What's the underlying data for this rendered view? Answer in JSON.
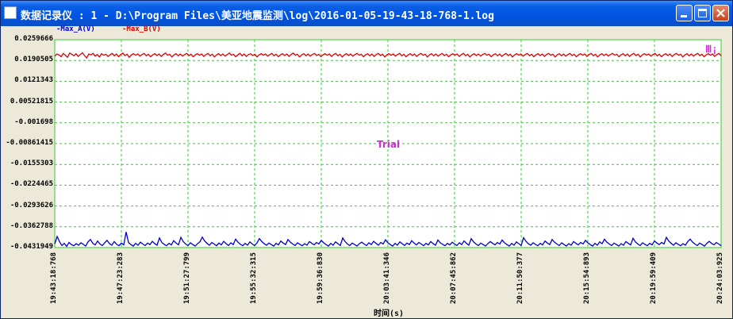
{
  "window": {
    "title": "数据记录仪 : 1 - D:\\Program Files\\美亚地震监测\\log\\2016-01-05-19-43-18-768-1.log",
    "buttons": [
      "minimize",
      "maximize",
      "close"
    ]
  },
  "legend": [
    {
      "label": "-Max_A(V)",
      "color": "#0000CC"
    },
    {
      "label": "-Max_B(V)",
      "color": "#DD0000"
    }
  ],
  "watermark": "Trial",
  "marker_text": "Ⅲ¡",
  "chart_data": {
    "type": "line",
    "xlabel": "时间(s)",
    "ylabel": "",
    "title": "",
    "grid": true,
    "grid_color": "#33CC33",
    "ylim": [
      -0.0431949,
      0.0259666
    ],
    "yticks": [
      "0.0259666",
      "0.0190505",
      "0.0121343",
      "0.00521815",
      "-0.001698",
      "-0.00861415",
      "-0.0155303",
      "-0.0224465",
      "-0.0293626",
      "-0.0362788",
      "-0.0431949"
    ],
    "yvalues": [
      0.0259666,
      0.0190505,
      0.0121343,
      0.00521815,
      -0.001698,
      -0.00861415,
      -0.0155303,
      -0.0224465,
      -0.0293626,
      -0.0362788,
      -0.0431949
    ],
    "xticks": [
      "19:43:18:768",
      "19:47:23:283",
      "19:51:27:799",
      "19:55:32:315",
      "19:59:36:830",
      "20:03:41:346",
      "20:07:45:862",
      "20:11:50:377",
      "20:15:54:893",
      "20:19:59:409",
      "20:24:03:925"
    ],
    "series": [
      {
        "name": "-Max_B(V)",
        "color": "#DD0000",
        "values": [
          0.0205,
          0.0212,
          0.0209,
          0.0203,
          0.0214,
          0.0208,
          0.0201,
          0.0215,
          0.0211,
          0.0206,
          0.0213,
          0.0204,
          0.021,
          0.0216,
          0.0207,
          0.0199,
          0.0212,
          0.0209,
          0.0214,
          0.0205,
          0.021,
          0.0202,
          0.0213,
          0.0208,
          0.0211,
          0.0204,
          0.0209,
          0.0214,
          0.0206,
          0.0212,
          0.0203,
          0.021,
          0.0215,
          0.0207,
          0.0211,
          0.0201,
          0.0209,
          0.0213,
          0.0208,
          0.0212,
          0.0205,
          0.021,
          0.0214,
          0.0206,
          0.0211,
          0.0203,
          0.0209,
          0.0213,
          0.0207,
          0.0212,
          0.0204,
          0.021,
          0.0215,
          0.0208,
          0.0211,
          0.0202,
          0.0209,
          0.0213,
          0.0206,
          0.0212,
          0.0205,
          0.021,
          0.0214,
          0.0207,
          0.0211,
          0.0203,
          0.0209,
          0.0213,
          0.0208,
          0.0212,
          0.0204,
          0.021,
          0.0214,
          0.0206,
          0.0211,
          0.0202,
          0.0209,
          0.0213,
          0.0207,
          0.0212,
          0.0205,
          0.021,
          0.0215,
          0.0208,
          0.0211,
          0.0203,
          0.0209,
          0.0214,
          0.0206,
          0.0212,
          0.0204,
          0.021,
          0.0213,
          0.0207,
          0.0211,
          0.0202,
          0.0209,
          0.0213,
          0.0208,
          0.0212,
          0.0205,
          0.021,
          0.0214,
          0.0206,
          0.0211,
          0.0203,
          0.0209,
          0.0213,
          0.0207,
          0.0212,
          0.0204,
          0.021,
          0.0215,
          0.0208,
          0.0211,
          0.0202,
          0.0209,
          0.0213,
          0.0206,
          0.0212,
          0.0205,
          0.021,
          0.0214,
          0.0207,
          0.0211,
          0.0203,
          0.0209,
          0.0213,
          0.0208,
          0.0212,
          0.0204,
          0.021,
          0.0214,
          0.0206,
          0.0211,
          0.0202,
          0.0209,
          0.0213,
          0.0207,
          0.0212,
          0.0205,
          0.021,
          0.0214,
          0.0208,
          0.0211,
          0.0203,
          0.0209,
          0.0213,
          0.0206,
          0.0212,
          0.0204,
          0.021,
          0.0214,
          0.0207,
          0.0211,
          0.0202,
          0.0209,
          0.0213,
          0.0208,
          0.0212,
          0.0205,
          0.021,
          0.0214,
          0.0206,
          0.0211,
          0.0203,
          0.0209,
          0.0213,
          0.0207,
          0.0212,
          0.0204,
          0.021,
          0.0214,
          0.0208,
          0.0211,
          0.0202,
          0.0209,
          0.0213,
          0.0206,
          0.0212,
          0.0205,
          0.021,
          0.0214,
          0.0207,
          0.0211,
          0.0203,
          0.0209,
          0.0213,
          0.0208,
          0.0212,
          0.0204,
          0.021,
          0.0214,
          0.0206,
          0.0211,
          0.0202,
          0.0209,
          0.0213,
          0.0207,
          0.0212,
          0.0205,
          0.021,
          0.0214,
          0.0208,
          0.0211,
          0.0203,
          0.0209,
          0.0213,
          0.0206,
          0.0212,
          0.0204,
          0.021,
          0.0214,
          0.0207,
          0.0211,
          0.0202,
          0.0209,
          0.0213,
          0.0208,
          0.0212,
          0.0205,
          0.021,
          0.0214,
          0.0206,
          0.0211,
          0.0203,
          0.0209,
          0.0213,
          0.0207,
          0.0212,
          0.0204,
          0.021,
          0.0214,
          0.0208,
          0.0211,
          0.0202,
          0.0209,
          0.0213,
          0.0206,
          0.0212,
          0.0205,
          0.021,
          0.0214,
          0.0207,
          0.0211,
          0.0203,
          0.0209,
          0.0213,
          0.0208,
          0.0212,
          0.0204,
          0.021,
          0.0214,
          0.0206,
          0.0211,
          0.0202,
          0.0209,
          0.0213,
          0.0207,
          0.0212,
          0.0205,
          0.021,
          0.0214,
          0.0208,
          0.0211,
          0.0203,
          0.0209,
          0.0213,
          0.0206,
          0.0212,
          0.0204,
          0.021,
          0.0214,
          0.0207,
          0.0211,
          0.0202,
          0.0209,
          0.0213,
          0.0208,
          0.0212,
          0.0205,
          0.021,
          0.0214,
          0.0206,
          0.0211,
          0.0203,
          0.0209,
          0.0213,
          0.0207,
          0.0212,
          0.0204,
          0.021,
          0.0214,
          0.0208,
          0.0211,
          0.0202,
          0.0209,
          0.0213,
          0.0206,
          0.0212,
          0.0205,
          0.021,
          0.0214,
          0.0207,
          0.0211,
          0.0203,
          0.0209,
          0.0213,
          0.0208,
          0.0212,
          0.0204,
          0.021,
          0.0214,
          0.0206
        ]
      },
      {
        "name": "-Max_A(V)",
        "color": "#0000CC",
        "values": [
          -0.042,
          -0.0395,
          -0.0412,
          -0.0425,
          -0.0418,
          -0.0428,
          -0.0415,
          -0.0422,
          -0.0426,
          -0.0419,
          -0.0424,
          -0.0416,
          -0.0421,
          -0.0427,
          -0.0413,
          -0.0405,
          -0.0418,
          -0.0423,
          -0.041,
          -0.042,
          -0.0425,
          -0.0416,
          -0.0408,
          -0.0419,
          -0.0424,
          -0.0412,
          -0.0421,
          -0.0426,
          -0.0417,
          -0.0423,
          -0.038,
          -0.0415,
          -0.0422,
          -0.0427,
          -0.0418,
          -0.0424,
          -0.0414,
          -0.042,
          -0.0425,
          -0.0417,
          -0.0422,
          -0.0411,
          -0.0419,
          -0.0424,
          -0.04,
          -0.0415,
          -0.0421,
          -0.0426,
          -0.0418,
          -0.0423,
          -0.0409,
          -0.0417,
          -0.0423,
          -0.0398,
          -0.0412,
          -0.042,
          -0.0425,
          -0.0416,
          -0.0422,
          -0.0427,
          -0.0419,
          -0.0413,
          -0.0397,
          -0.041,
          -0.0418,
          -0.0424,
          -0.0415,
          -0.042,
          -0.0426,
          -0.0417,
          -0.0423,
          -0.0411,
          -0.0419,
          -0.0425,
          -0.0416,
          -0.0422,
          -0.0404,
          -0.0414,
          -0.0421,
          -0.0426,
          -0.0418,
          -0.0424,
          -0.0413,
          -0.042,
          -0.0425,
          -0.0416,
          -0.0402,
          -0.0412,
          -0.0419,
          -0.0424,
          -0.0417,
          -0.0422,
          -0.0427,
          -0.0418,
          -0.0423,
          -0.041,
          -0.0417,
          -0.0422,
          -0.0405,
          -0.0414,
          -0.042,
          -0.0425,
          -0.0416,
          -0.0421,
          -0.0426,
          -0.0419,
          -0.0424,
          -0.0412,
          -0.0418,
          -0.0423,
          -0.0415,
          -0.042,
          -0.0408,
          -0.0416,
          -0.0422,
          -0.0427,
          -0.0418,
          -0.0424,
          -0.0413,
          -0.0419,
          -0.0425,
          -0.04,
          -0.0412,
          -0.042,
          -0.0425,
          -0.0417,
          -0.0422,
          -0.0427,
          -0.0419,
          -0.0414,
          -0.042,
          -0.0425,
          -0.0416,
          -0.0422,
          -0.0411,
          -0.0418,
          -0.0424,
          -0.0415,
          -0.042,
          -0.0406,
          -0.0416,
          -0.0422,
          -0.0427,
          -0.0418,
          -0.0424,
          -0.0413,
          -0.0419,
          -0.0425,
          -0.0417,
          -0.0422,
          -0.0409,
          -0.0417,
          -0.0423,
          -0.0415,
          -0.042,
          -0.0426,
          -0.0418,
          -0.0423,
          -0.0412,
          -0.0419,
          -0.0424,
          -0.0407,
          -0.0416,
          -0.0421,
          -0.0426,
          -0.0418,
          -0.0423,
          -0.0414,
          -0.042,
          -0.0425,
          -0.0416,
          -0.0422,
          -0.041,
          -0.0418,
          -0.0424,
          -0.0402,
          -0.0413,
          -0.042,
          -0.0425,
          -0.0417,
          -0.0422,
          -0.0427,
          -0.0419,
          -0.0412,
          -0.0418,
          -0.0423,
          -0.0415,
          -0.042,
          -0.0407,
          -0.0416,
          -0.0422,
          -0.0427,
          -0.0418,
          -0.0424,
          -0.0413,
          -0.0419,
          -0.0425,
          -0.0399,
          -0.0411,
          -0.0419,
          -0.0424,
          -0.0416,
          -0.0421,
          -0.0426,
          -0.0418,
          -0.0423,
          -0.041,
          -0.0417,
          -0.0422,
          -0.0405,
          -0.0414,
          -0.042,
          -0.0425,
          -0.0416,
          -0.0422,
          -0.0427,
          -0.0419,
          -0.0424,
          -0.0412,
          -0.0418,
          -0.0423,
          -0.0415,
          -0.042,
          -0.0408,
          -0.0416,
          -0.0422,
          -0.0427,
          -0.0418,
          -0.0424,
          -0.0413,
          -0.0419,
          -0.0404,
          -0.0414,
          -0.042,
          -0.0425,
          -0.0417,
          -0.0422,
          -0.0427,
          -0.0419,
          -0.0424,
          -0.0412,
          -0.0418,
          -0.0423,
          -0.0401,
          -0.0413,
          -0.042,
          -0.0425,
          -0.0416,
          -0.0421,
          -0.0426,
          -0.0418,
          -0.0423,
          -0.041,
          -0.0417,
          -0.0422,
          -0.0415,
          -0.042,
          -0.0398,
          -0.041,
          -0.0418,
          -0.0424,
          -0.0416,
          -0.0421,
          -0.0426,
          -0.0419,
          -0.0424,
          -0.0412,
          -0.0404,
          -0.0414,
          -0.042,
          -0.0425,
          -0.0417,
          -0.0422,
          -0.0427,
          -0.0418,
          -0.0411,
          -0.0418,
          -0.0423,
          -0.0415,
          -0.042,
          -0.0426
        ]
      }
    ]
  }
}
